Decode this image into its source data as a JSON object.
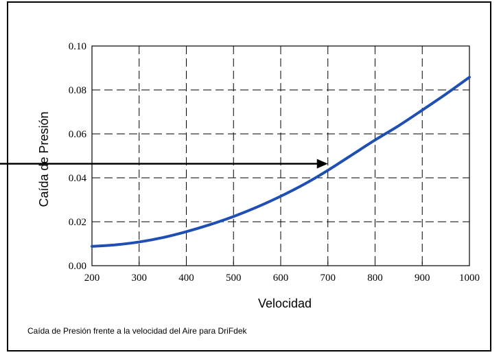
{
  "caption": "Caída de Presión frente a la velocidad del Aire para DriFdek",
  "chart_data": {
    "type": "line",
    "title": "",
    "xlabel": "Velocidad",
    "ylabel": "Caída de Presión",
    "xlim": [
      200,
      1000
    ],
    "ylim": [
      0.0,
      0.1
    ],
    "x_ticks": [
      200,
      300,
      400,
      500,
      600,
      700,
      800,
      900,
      1000
    ],
    "y_ticks": [
      0.0,
      0.02,
      0.04,
      0.06,
      0.08,
      0.1
    ],
    "x_tick_labels": [
      "200",
      "300",
      "400",
      "500",
      "600",
      "700",
      "800",
      "900",
      "1000"
    ],
    "y_tick_labels": [
      "0.00",
      "0.02",
      "0.04",
      "0.06",
      "0.08",
      "0.10"
    ],
    "grid": true,
    "series": [
      {
        "name": "",
        "color": "#1f4fb3",
        "x": [
          200,
          250,
          300,
          350,
          400,
          450,
          500,
          550,
          600,
          650,
          700,
          750,
          800,
          850,
          900,
          950,
          1000
        ],
        "y": [
          0.0088,
          0.0095,
          0.0108,
          0.0128,
          0.0155,
          0.0187,
          0.0224,
          0.0267,
          0.0316,
          0.0371,
          0.0434,
          0.0503,
          0.0572,
          0.0637,
          0.0708,
          0.0781,
          0.0858
        ]
      }
    ],
    "annotations": [
      {
        "type": "arrow",
        "from_x": 0,
        "y": 0.0464,
        "to_x": 700
      }
    ]
  }
}
